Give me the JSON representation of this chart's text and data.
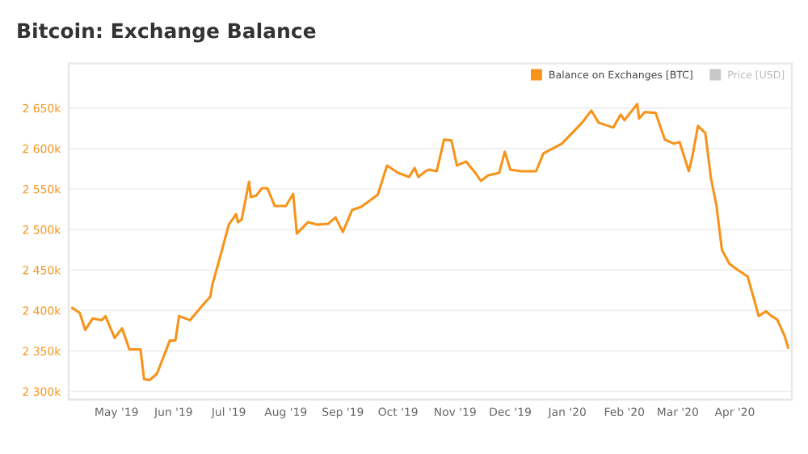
{
  "chart_data": {
    "type": "line",
    "title": "Bitcoin: Exchange Balance",
    "x": [
      "2019-04-07",
      "2019-04-11",
      "2019-04-14",
      "2019-04-18",
      "2019-04-23",
      "2019-04-25",
      "2019-04-30",
      "2019-05-04",
      "2019-05-08",
      "2019-05-14",
      "2019-05-16",
      "2019-05-19",
      "2019-05-23",
      "2019-05-30",
      "2019-06-02",
      "2019-06-04",
      "2019-06-10",
      "2019-06-17",
      "2019-06-21",
      "2019-06-22",
      "2019-06-27",
      "2019-07-01",
      "2019-07-05",
      "2019-07-06",
      "2019-07-08",
      "2019-07-12",
      "2019-07-13",
      "2019-07-16",
      "2019-07-19",
      "2019-07-22",
      "2019-07-26",
      "2019-08-01",
      "2019-08-05",
      "2019-08-07",
      "2019-08-13",
      "2019-08-18",
      "2019-08-24",
      "2019-08-28",
      "2019-09-01",
      "2019-09-06",
      "2019-09-11",
      "2019-09-20",
      "2019-09-25",
      "2019-10-01",
      "2019-10-07",
      "2019-10-10",
      "2019-10-12",
      "2019-10-16",
      "2019-10-18",
      "2019-10-22",
      "2019-10-26",
      "2019-10-30",
      "2019-11-02",
      "2019-11-07",
      "2019-11-12",
      "2019-11-15",
      "2019-11-19",
      "2019-11-25",
      "2019-11-28",
      "2019-12-01",
      "2019-12-07",
      "2019-12-15",
      "2019-12-19",
      "2019-12-29",
      "2020-01-09",
      "2020-01-14",
      "2020-01-18",
      "2020-01-26",
      "2020-01-30",
      "2020-02-01",
      "2020-02-08",
      "2020-02-09",
      "2020-02-12",
      "2020-02-18",
      "2020-02-23",
      "2020-02-28",
      "2020-03-02",
      "2020-03-07",
      "2020-03-09",
      "2020-03-12",
      "2020-03-16",
      "2020-03-19",
      "2020-03-22",
      "2020-03-25",
      "2020-03-29",
      "2020-04-02",
      "2020-04-08",
      "2020-04-14",
      "2020-04-18",
      "2020-04-21",
      "2020-04-24",
      "2020-04-28",
      "2020-04-30"
    ],
    "series": [
      {
        "name": "Balance on Exchanges [BTC]",
        "color": "#f7931a",
        "values": [
          2403,
          2397,
          2376,
          2390,
          2388,
          2393,
          2366,
          2378,
          2352,
          2352,
          2315,
          2314,
          2322,
          2363,
          2363,
          2393,
          2388,
          2407,
          2417,
          2431,
          2472,
          2506,
          2519,
          2509,
          2512,
          2559,
          2540,
          2542,
          2551,
          2551,
          2529,
          2529,
          2544,
          2495,
          2509,
          2506,
          2507,
          2515,
          2497,
          2524,
          2528,
          2543,
          2579,
          2570,
          2565,
          2576,
          2565,
          2572,
          2574,
          2572,
          2611,
          2610,
          2579,
          2584,
          2570,
          2560,
          2567,
          2570,
          2596,
          2574,
          2572,
          2572,
          2594,
          2606,
          2632,
          2647,
          2632,
          2626,
          2642,
          2635,
          2655,
          2637,
          2645,
          2644,
          2611,
          2606,
          2608,
          2572,
          2591,
          2628,
          2619,
          2564,
          2530,
          2475,
          2458,
          2451,
          2442,
          2393,
          2399,
          2393,
          2389,
          2369,
          2354
        ]
      },
      {
        "name": "Price [USD]",
        "color": "#c8c8c8",
        "values": [
          null,
          null,
          null,
          null,
          null,
          null,
          null,
          null,
          null,
          null,
          null,
          null,
          null,
          null,
          null,
          null,
          null,
          null,
          null,
          null,
          null,
          null,
          null,
          null,
          null,
          null,
          null,
          null,
          null,
          null,
          null,
          null,
          null,
          null,
          null,
          null,
          null,
          null,
          null,
          null,
          null,
          null,
          null,
          null,
          null,
          null,
          null,
          null,
          null,
          null,
          null,
          null,
          null,
          null,
          null,
          null,
          null,
          null,
          null,
          null,
          null,
          null,
          null,
          null,
          null,
          null,
          null,
          null,
          null,
          null,
          null,
          null,
          null,
          null,
          null,
          null,
          null,
          null,
          null,
          null,
          null,
          null,
          null,
          null,
          null,
          null,
          null,
          null,
          null,
          null,
          null,
          null,
          null
        ]
      }
    ],
    "xlim": [
      "2019-04-05",
      "2020-05-02"
    ],
    "xticks": [
      {
        "value": "2019-05-01",
        "label": "May '19"
      },
      {
        "value": "2019-06-01",
        "label": "Jun '19"
      },
      {
        "value": "2019-07-01",
        "label": "Jul '19"
      },
      {
        "value": "2019-08-01",
        "label": "Aug '19"
      },
      {
        "value": "2019-09-01",
        "label": "Sep '19"
      },
      {
        "value": "2019-10-01",
        "label": "Oct '19"
      },
      {
        "value": "2019-11-01",
        "label": "Nov '19"
      },
      {
        "value": "2019-12-01",
        "label": "Dec '19"
      },
      {
        "value": "2020-01-01",
        "label": "Jan '20"
      },
      {
        "value": "2020-02-01",
        "label": "Feb '20"
      },
      {
        "value": "2020-03-01",
        "label": "Mar '20"
      },
      {
        "value": "2020-04-01",
        "label": "Apr '20"
      }
    ],
    "ylim": [
      2290,
      2705
    ],
    "yticks": [
      {
        "value": 2300,
        "label": "2 300k"
      },
      {
        "value": 2350,
        "label": "2 350k"
      },
      {
        "value": 2400,
        "label": "2 400k"
      },
      {
        "value": 2450,
        "label": "2 450k"
      },
      {
        "value": 2500,
        "label": "2 500k"
      },
      {
        "value": 2550,
        "label": "2 550k"
      },
      {
        "value": 2600,
        "label": "2 600k"
      },
      {
        "value": 2650,
        "label": "2 650k"
      }
    ],
    "grid": "y",
    "legend": "top right",
    "marker": "none",
    "line_style": "solid"
  }
}
